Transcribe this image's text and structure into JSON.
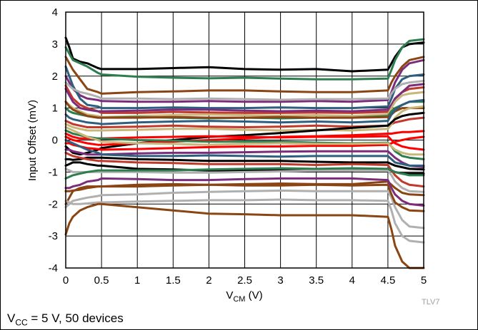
{
  "chart_data": {
    "type": "line",
    "xlabel_main": "V",
    "xlabel_sub": "CM",
    "xlabel_unit": " (V)",
    "ylabel": "Input Offset (mV)",
    "figure_id": "TLV7",
    "caption_main": "V",
    "caption_sub": "CC",
    "caption_rest": " = 5 V, 50 devices",
    "xlim": [
      0,
      5
    ],
    "ylim": [
      -4,
      4
    ],
    "xticks": [
      "0",
      "0.5",
      "1",
      "1.5",
      "2",
      "2.5",
      "3",
      "3.5",
      "4",
      "4.5",
      "5"
    ],
    "yticks": [
      "4",
      "3",
      "2",
      "1",
      "0",
      "-1",
      "-2",
      "-3",
      "-4"
    ],
    "grid": true,
    "x": [
      0,
      0.05,
      0.1,
      0.2,
      0.3,
      0.45,
      0.5,
      1,
      1.5,
      2,
      2.5,
      3,
      3.5,
      4,
      4.5,
      4.55,
      4.6,
      4.7,
      4.8,
      5
    ],
    "series": [
      {
        "color": "#000000",
        "values": [
          3.2,
          2.9,
          2.55,
          2.45,
          2.4,
          2.25,
          2.22,
          2.22,
          2.25,
          2.28,
          2.22,
          2.2,
          2.22,
          2.15,
          2.2,
          2.4,
          2.6,
          2.9,
          3.0,
          3.05
        ]
      },
      {
        "color": "#2e7d4f",
        "values": [
          2.9,
          2.7,
          2.5,
          2.4,
          2.3,
          2.1,
          2.05,
          1.98,
          1.95,
          1.93,
          1.95,
          1.92,
          1.9,
          1.9,
          1.92,
          2.2,
          2.5,
          2.9,
          3.1,
          3.15
        ]
      },
      {
        "color": "#8b4513",
        "values": [
          2.6,
          2.4,
          2.2,
          1.9,
          1.6,
          1.5,
          1.45,
          1.5,
          1.52,
          1.55,
          1.55,
          1.52,
          1.5,
          1.5,
          1.55,
          1.8,
          2.0,
          2.3,
          2.5,
          2.6
        ]
      },
      {
        "color": "#7b2d7b",
        "values": [
          2.0,
          1.8,
          1.6,
          1.4,
          1.3,
          1.25,
          1.22,
          1.2,
          1.2,
          1.22,
          1.2,
          1.2,
          1.22,
          1.2,
          1.25,
          1.5,
          1.8,
          2.2,
          2.4,
          2.5
        ]
      },
      {
        "color": "#2f5f7f",
        "values": [
          2.3,
          2.0,
          1.7,
          1.3,
          1.1,
          1.05,
          1.0,
          1.0,
          1.02,
          1.0,
          1.0,
          1.02,
          1.0,
          1.0,
          1.05,
          1.3,
          1.6,
          1.9,
          2.0,
          2.05
        ]
      },
      {
        "color": "#b0b0b0",
        "values": [
          1.8,
          1.7,
          1.6,
          1.5,
          1.45,
          1.35,
          1.3,
          1.3,
          1.28,
          1.3,
          1.28,
          1.26,
          1.28,
          1.28,
          1.3,
          1.45,
          1.6,
          1.75,
          1.8,
          1.85
        ]
      },
      {
        "color": "#c0392b",
        "values": [
          1.7,
          1.5,
          1.3,
          1.1,
          1.0,
          0.9,
          0.85,
          0.85,
          0.88,
          0.86,
          0.85,
          0.85,
          0.86,
          0.85,
          0.88,
          1.1,
          1.3,
          1.5,
          1.6,
          1.65
        ]
      },
      {
        "color": "#7b2d7b",
        "values": [
          1.6,
          1.4,
          1.2,
          1.0,
          0.95,
          0.9,
          0.9,
          0.92,
          0.95,
          0.95,
          0.92,
          0.9,
          0.92,
          0.9,
          0.95,
          1.1,
          1.3,
          1.5,
          1.7,
          1.75
        ]
      },
      {
        "color": "#c9b67a",
        "values": [
          1.2,
          1.1,
          1.0,
          0.9,
          0.8,
          0.75,
          0.72,
          0.75,
          0.78,
          0.8,
          0.78,
          0.76,
          0.78,
          0.75,
          0.8,
          1.0,
          1.2,
          1.4,
          1.45,
          1.5
        ]
      },
      {
        "color": "#2e7d4f",
        "values": [
          1.0,
          0.9,
          0.85,
          0.8,
          0.75,
          0.7,
          0.7,
          0.72,
          0.7,
          0.68,
          0.7,
          0.68,
          0.7,
          0.7,
          0.75,
          0.9,
          1.0,
          1.1,
          1.2,
          1.2
        ]
      },
      {
        "color": "#8b4513",
        "values": [
          1.2,
          1.05,
          0.95,
          0.85,
          0.75,
          0.7,
          0.7,
          0.7,
          0.72,
          0.7,
          0.7,
          0.72,
          0.7,
          0.7,
          0.72,
          0.8,
          0.9,
          1.0,
          1.0,
          1.0
        ]
      },
      {
        "color": "#2f5f7f",
        "values": [
          0.8,
          0.7,
          0.65,
          0.6,
          0.55,
          0.52,
          0.5,
          0.55,
          0.58,
          0.6,
          0.58,
          0.55,
          0.58,
          0.55,
          0.6,
          0.8,
          0.95,
          1.1,
          1.2,
          1.25
        ]
      },
      {
        "color": "#c0392b",
        "values": [
          0.6,
          0.55,
          0.5,
          0.45,
          0.4,
          0.4,
          0.4,
          0.42,
          0.45,
          0.42,
          0.4,
          0.42,
          0.45,
          0.42,
          0.45,
          0.5,
          0.55,
          0.6,
          0.65,
          0.7
        ]
      },
      {
        "color": "#c9b67a",
        "values": [
          0.5,
          0.45,
          0.4,
          0.35,
          0.3,
          0.3,
          0.3,
          0.32,
          0.35,
          0.35,
          0.32,
          0.3,
          0.32,
          0.3,
          0.35,
          0.5,
          0.7,
          0.9,
          1.0,
          1.05
        ]
      },
      {
        "color": "#000000",
        "values": [
          -0.2,
          -0.3,
          -0.4,
          -0.45,
          -0.4,
          -0.3,
          -0.25,
          -0.1,
          0.0,
          0.1,
          0.15,
          0.22,
          0.3,
          0.38,
          0.45,
          0.55,
          0.65,
          0.75,
          0.8,
          0.85
        ]
      },
      {
        "color": "#ff0000",
        "values": [
          0.1,
          0.05,
          0.0,
          -0.05,
          -0.1,
          -0.15,
          -0.15,
          -0.1,
          -0.05,
          0.0,
          0.05,
          0.1,
          0.12,
          0.15,
          0.2,
          0.2,
          0.22,
          0.25,
          0.25,
          0.28
        ]
      },
      {
        "color": "#ff0000",
        "values": [
          0.2,
          0.15,
          0.1,
          0.05,
          0.05,
          0.05,
          0.05,
          0.08,
          0.1,
          0.12,
          0.1,
          0.08,
          0.1,
          0.1,
          0.12,
          0.0,
          -0.1,
          -0.2,
          -0.25,
          -0.3
        ]
      },
      {
        "color": "#ff0000",
        "values": [
          -0.1,
          -0.1,
          -0.15,
          -0.2,
          -0.25,
          -0.28,
          -0.3,
          -0.28,
          -0.25,
          -0.22,
          -0.2,
          -0.2,
          -0.18,
          -0.18,
          -0.15,
          -0.1,
          -0.05,
          0.0,
          0.05,
          0.1
        ]
      },
      {
        "color": "#2e7d4f",
        "values": [
          0.3,
          0.25,
          0.2,
          0.15,
          0.1,
          0.05,
          0.05,
          0.0,
          -0.02,
          -0.05,
          -0.05,
          -0.05,
          -0.08,
          -0.1,
          -0.08,
          -0.2,
          -0.35,
          -0.5,
          -0.55,
          -0.6
        ]
      },
      {
        "color": "#7b2d7b",
        "values": [
          -0.3,
          -0.3,
          -0.35,
          -0.4,
          -0.45,
          -0.45,
          -0.45,
          -0.42,
          -0.4,
          -0.4,
          -0.38,
          -0.36,
          -0.35,
          -0.35,
          -0.35,
          -0.45,
          -0.55,
          -0.7,
          -0.8,
          -0.85
        ]
      },
      {
        "color": "#2f5f7f",
        "values": [
          0.0,
          -0.05,
          -0.1,
          -0.2,
          -0.3,
          -0.4,
          -0.45,
          -0.5,
          -0.5,
          -0.48,
          -0.5,
          -0.52,
          -0.5,
          -0.5,
          -0.5,
          -0.6,
          -0.7,
          -0.75,
          -0.8,
          -0.8
        ]
      },
      {
        "color": "#c9b67a",
        "values": [
          0.4,
          0.35,
          0.3,
          0.2,
          0.1,
          0.0,
          -0.05,
          -0.1,
          -0.12,
          -0.15,
          -0.12,
          -0.1,
          -0.12,
          -0.12,
          -0.1,
          -0.2,
          -0.3,
          -0.4,
          -0.45,
          -0.45
        ]
      },
      {
        "color": "#000000",
        "values": [
          -0.6,
          -0.6,
          -0.62,
          -0.6,
          -0.55,
          -0.55,
          -0.55,
          -0.6,
          -0.62,
          -0.65,
          -0.65,
          -0.65,
          -0.68,
          -0.7,
          -0.7,
          -0.75,
          -0.8,
          -0.85,
          -0.9,
          -0.92
        ]
      },
      {
        "color": "#000000",
        "values": [
          -0.8,
          -0.75,
          -0.7,
          -0.7,
          -0.75,
          -0.8,
          -0.8,
          -0.9,
          -0.92,
          -0.95,
          -0.95,
          -0.95,
          -0.95,
          -0.95,
          -0.92,
          -0.95,
          -1.0,
          -1.05,
          -1.05,
          -1.05
        ]
      },
      {
        "color": "#c0392b",
        "values": [
          -0.4,
          -0.45,
          -0.5,
          -0.55,
          -0.6,
          -0.65,
          -0.65,
          -0.7,
          -0.72,
          -0.75,
          -0.75,
          -0.75,
          -0.78,
          -0.75,
          -0.78,
          -0.95,
          -1.1,
          -1.3,
          -1.4,
          -1.45
        ]
      },
      {
        "color": "#b0b0b0",
        "values": [
          -0.9,
          -0.95,
          -1.0,
          -1.0,
          -1.0,
          -1.0,
          -1.0,
          -1.0,
          -1.02,
          -1.02,
          -1.0,
          -0.98,
          -0.95,
          -0.95,
          -0.95,
          -1.1,
          -1.3,
          -1.5,
          -1.6,
          -1.62
        ]
      },
      {
        "color": "#2e7d4f",
        "values": [
          -1.2,
          -1.15,
          -1.1,
          -1.05,
          -1.0,
          -0.95,
          -0.95,
          -0.95,
          -0.95,
          -0.92,
          -0.9,
          -0.88,
          -0.9,
          -0.88,
          -0.9,
          -0.95,
          -1.0,
          -1.05,
          -1.1,
          -1.1
        ]
      },
      {
        "color": "#8b4513",
        "values": [
          -2.0,
          -1.8,
          -1.6,
          -1.5,
          -1.45,
          -1.45,
          -1.45,
          -1.4,
          -1.38,
          -1.4,
          -1.38,
          -1.36,
          -1.38,
          -1.38,
          -1.3,
          -1.4,
          -1.5,
          -1.65,
          -1.7,
          -1.72
        ]
      },
      {
        "color": "#b0b0b0",
        "values": [
          -2.1,
          -2.0,
          -1.9,
          -1.85,
          -1.8,
          -1.75,
          -1.72,
          -1.7,
          -1.65,
          -1.62,
          -1.6,
          -1.58,
          -1.6,
          -1.6,
          -1.6,
          -1.8,
          -2.1,
          -2.5,
          -2.7,
          -2.75
        ]
      },
      {
        "color": "#b0b0b0",
        "values": [
          -1.9,
          -1.95,
          -2.0,
          -2.0,
          -1.98,
          -1.95,
          -1.95,
          -1.92,
          -1.9,
          -1.88,
          -1.88,
          -1.86,
          -1.88,
          -1.88,
          -1.9,
          -2.2,
          -2.6,
          -3.0,
          -3.15,
          -3.2
        ]
      },
      {
        "color": "#7b2d7b",
        "values": [
          -1.5,
          -1.5,
          -1.45,
          -1.4,
          -1.3,
          -1.25,
          -1.2,
          -1.22,
          -1.25,
          -1.25,
          -1.22,
          -1.2,
          -1.2,
          -1.2,
          -1.25,
          -1.5,
          -1.7,
          -1.9,
          -2.0,
          -2.05
        ]
      },
      {
        "color": "#8b4513",
        "values": [
          -2.95,
          -2.6,
          -2.4,
          -2.2,
          -2.1,
          -2.0,
          -2.0,
          -2.1,
          -2.2,
          -2.3,
          -2.32,
          -2.35,
          -2.35,
          -2.35,
          -2.4,
          -2.8,
          -3.3,
          -3.8,
          -4.0,
          -4.0
        ]
      },
      {
        "color": "#8b4513",
        "values": [
          -1.6,
          -1.6,
          -1.58,
          -1.55,
          -1.5,
          -1.45,
          -1.45,
          -1.45,
          -1.42,
          -1.4,
          -1.42,
          -1.42,
          -1.4,
          -1.42,
          -1.4,
          -1.7,
          -1.95,
          -2.1,
          -2.2,
          -2.22
        ]
      }
    ]
  }
}
